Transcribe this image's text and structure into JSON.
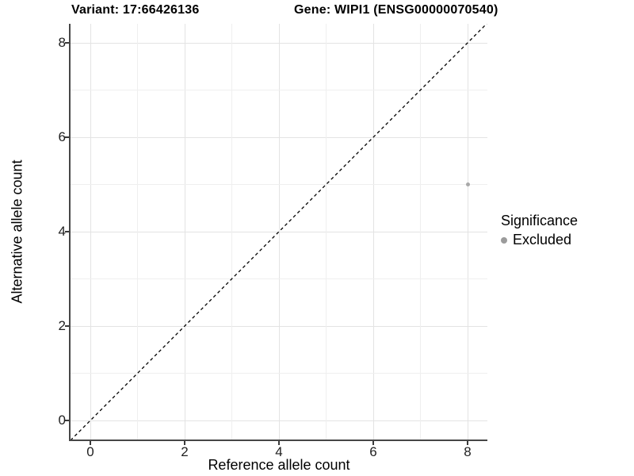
{
  "titles": {
    "variant": "Variant: 17:66426136",
    "gene": "Gene: WIPI1 (ENSG00000070540)"
  },
  "colors": {
    "background": "#ffffff",
    "grid_major": "#e3e3e3",
    "grid_minor": "#efefef",
    "axis_line": "#474747",
    "tick_mark": "#3a3a3a",
    "identity_line": "#000000",
    "point_excluded": "#a8a8a8",
    "legend_swatch": "#9b9b9b",
    "text": "#000000"
  },
  "chart_data": {
    "type": "scatter",
    "title": "Variant: 17:66426136   Gene: WIPI1 (ENSG00000070540)",
    "xlabel": "Reference allele count",
    "ylabel": "Alternative allele count",
    "xlim": [
      -0.42,
      8.42
    ],
    "ylim": [
      -0.42,
      8.42
    ],
    "x_ticks": [
      0,
      2,
      4,
      6,
      8
    ],
    "y_ticks": [
      0,
      2,
      4,
      6,
      8
    ],
    "x_minor_ticks": [
      1,
      3,
      5,
      7
    ],
    "y_minor_ticks": [
      1,
      3,
      5,
      7
    ],
    "grid": true,
    "reference_line": {
      "kind": "identity y=x",
      "style": "dashed",
      "color": "#000000"
    },
    "series": [
      {
        "name": "Excluded",
        "color": "#a8a8a8",
        "points": [
          {
            "x": 8,
            "y": 5
          }
        ]
      }
    ],
    "legend": {
      "position": "right",
      "title": "Significance",
      "entries": [
        {
          "label": "Excluded",
          "marker": "circle",
          "color": "#9b9b9b"
        }
      ]
    }
  },
  "legend": {
    "title": "Significance",
    "excluded_label": "Excluded"
  }
}
